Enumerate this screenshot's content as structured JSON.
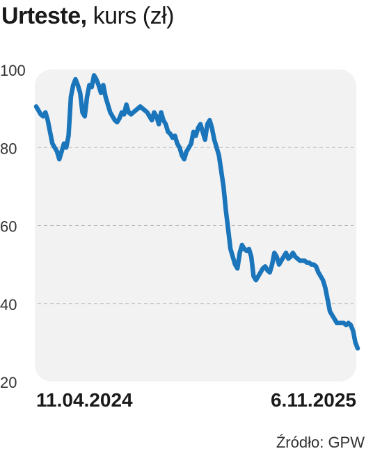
{
  "title": {
    "bold": "Urteste,",
    "light": "kurs (zł)"
  },
  "source": "Źródło: GPW",
  "colors": {
    "line": "#1a75bb",
    "plot_bg": "#f2f2f2",
    "grid": "#b9b9b9",
    "text": "#333333"
  },
  "chart_data": {
    "type": "line",
    "title": "Urteste, kurs (zł)",
    "xlabel": "",
    "ylabel": "",
    "ylim": [
      20,
      100
    ],
    "yticks": [
      "20",
      "40",
      "60",
      "80",
      "100"
    ],
    "xticks": [
      "11.04.2024",
      "6.11.2025"
    ],
    "x_start": "11.04.2024",
    "x_end": "6.11.2025",
    "grid": "horizontal dashed",
    "legend": "none",
    "series": [
      {
        "values": [
          90.5,
          89.5,
          88.5,
          88,
          89,
          87,
          84,
          81,
          80,
          79,
          77,
          79,
          81,
          80,
          83,
          93,
          96,
          97.5,
          96,
          94,
          89,
          88,
          93,
          96,
          95.5,
          98.5,
          97.5,
          96,
          94,
          96,
          93,
          91,
          89,
          88,
          87,
          86.5,
          87.5,
          89,
          88.5,
          91,
          89,
          88.5,
          89,
          89.5,
          90,
          90.5,
          90,
          89.5,
          89,
          88,
          87,
          89,
          88,
          86,
          89,
          87,
          86,
          84,
          83.5,
          82.5,
          83,
          81,
          80,
          78,
          77,
          79,
          80,
          81,
          84,
          83,
          85,
          86,
          84,
          82,
          86,
          87,
          85,
          82,
          80,
          78,
          74,
          70,
          64,
          59,
          54,
          52,
          50,
          49,
          53,
          55,
          54,
          53.5,
          54,
          52,
          47,
          46,
          47,
          48,
          49,
          49.5,
          48.5,
          48,
          50,
          53,
          52,
          50,
          51,
          52,
          53,
          51.5,
          52,
          53,
          52,
          51.5,
          51,
          51,
          51,
          50.5,
          50.5,
          50,
          50,
          49.5,
          48,
          47,
          46,
          44,
          41,
          38,
          37,
          36,
          35,
          35,
          35,
          35,
          34.5,
          35,
          34.5,
          33,
          30,
          28.5
        ]
      }
    ]
  }
}
